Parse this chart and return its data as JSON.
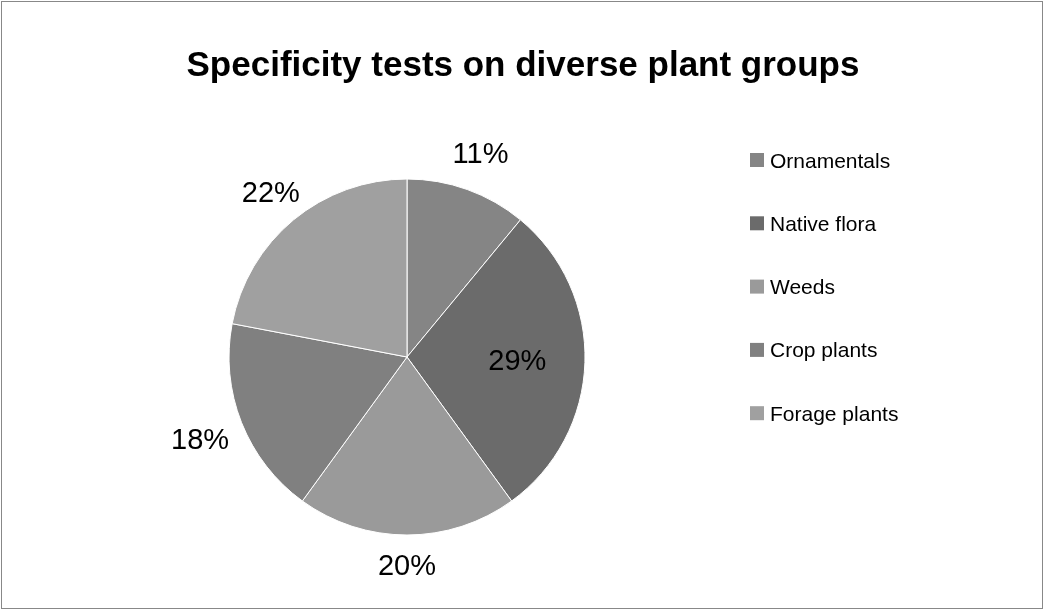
{
  "chart_data": {
    "type": "pie",
    "title": "Specificity tests on diverse plant groups",
    "categories": [
      "Ornamentals",
      "Native flora",
      "Weeds",
      "Crop plants",
      "Forage plants"
    ],
    "values": [
      11,
      29,
      20,
      18,
      22
    ],
    "colors": [
      "#858585",
      "#6b6b6b",
      "#9a9a9a",
      "#808080",
      "#a0a0a0"
    ],
    "value_labels": [
      "11%",
      "29%",
      "20%",
      "18%",
      "22%"
    ],
    "legend": "right"
  }
}
